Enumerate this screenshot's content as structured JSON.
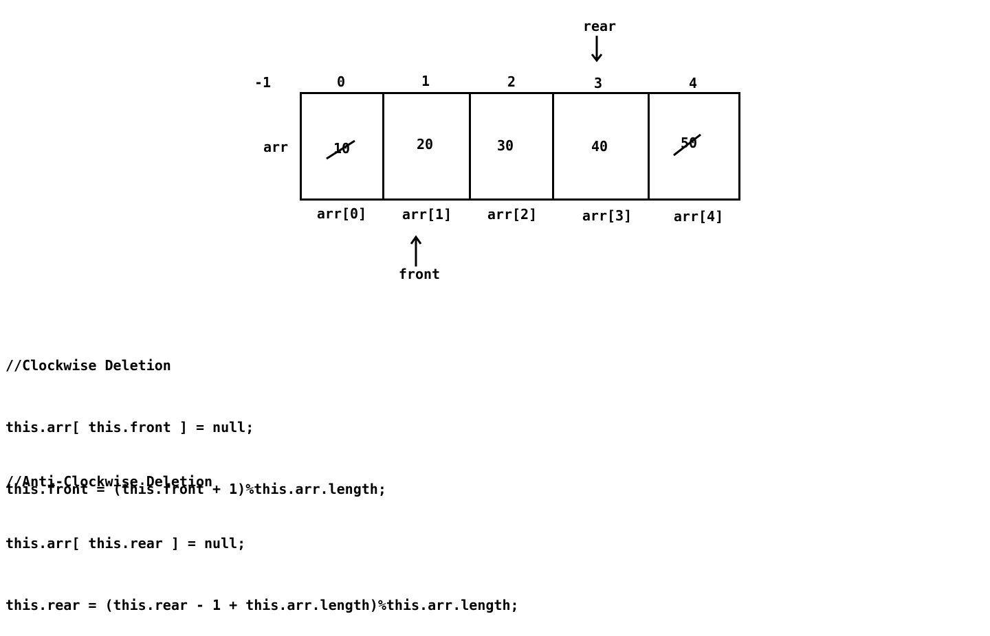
{
  "diagram": {
    "minus_one_label": "-1",
    "array_name": "arr",
    "indices": [
      "0",
      "1",
      "2",
      "3",
      "4"
    ],
    "values": [
      "10",
      "20",
      "30",
      "40",
      "50"
    ],
    "element_labels": [
      "arr[0]",
      "arr[1]",
      "arr[2]",
      "arr[3]",
      "arr[4]"
    ],
    "struck_out_cells": [
      0,
      4
    ],
    "rear_label": "rear",
    "rear_points_to_index": 3,
    "front_label": "front",
    "front_points_to_index": 1
  },
  "code": {
    "clockwise": {
      "comment": "//Clockwise Deletion",
      "line1": "this.arr[ this.front ] = null;",
      "line2": "this.front = (this.front + 1)%this.arr.length;"
    },
    "anticlockwise": {
      "comment": "//Anti-Clockwise Deletion",
      "line1": "this.arr[ this.rear ] = null;",
      "line2": "this.rear = (this.rear - 1 + this.arr.length)%this.arr.length;"
    }
  }
}
